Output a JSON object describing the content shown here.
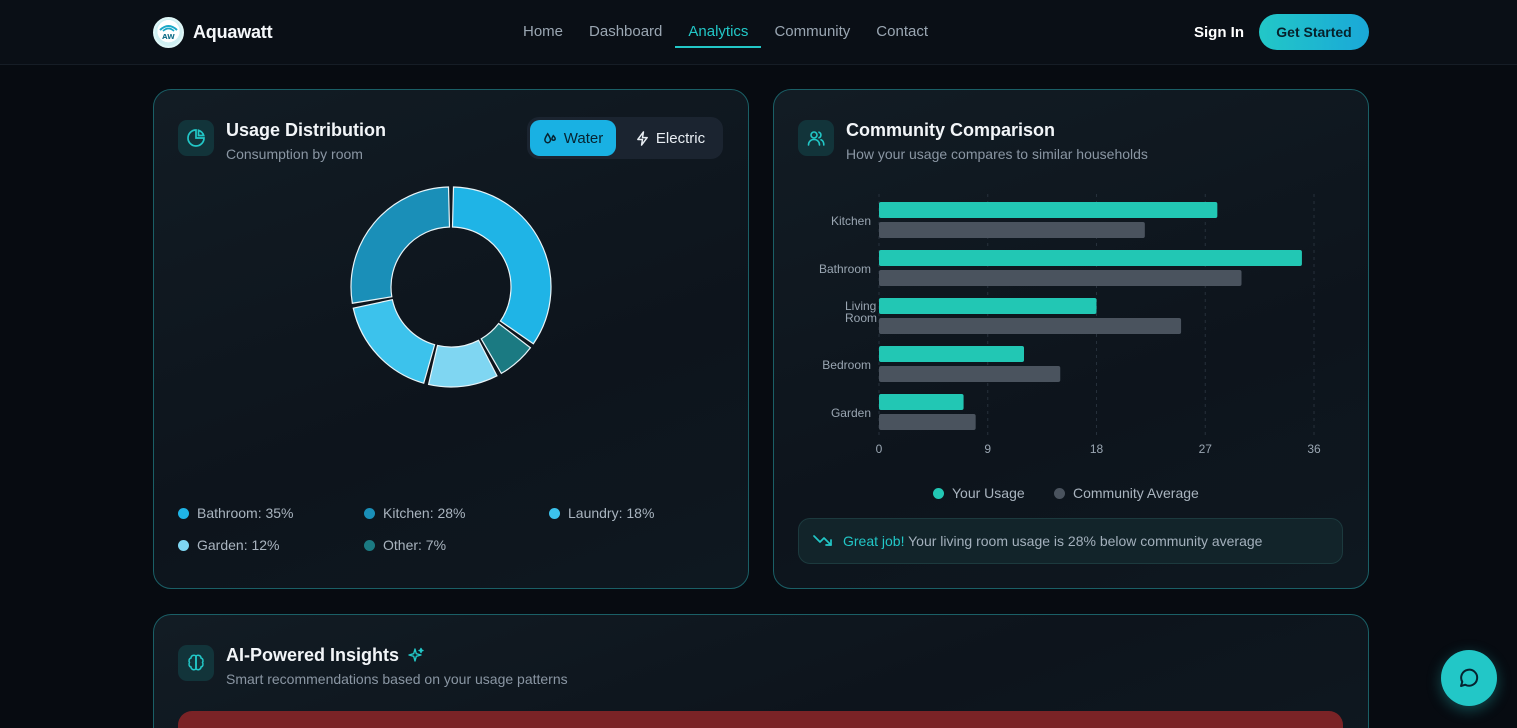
{
  "brand": {
    "name": "Aquawatt",
    "logo_text": "AW"
  },
  "nav": {
    "links": [
      "Home",
      "Dashboard",
      "Analytics",
      "Community",
      "Contact"
    ],
    "active": "Analytics",
    "signin": "Sign In",
    "cta": "Get Started"
  },
  "usage": {
    "title": "Usage Distribution",
    "subtitle": "Consumption by room",
    "toggle": {
      "water": "Water",
      "electric": "Electric",
      "selected": "Water"
    },
    "legend": [
      {
        "label": "Bathroom: 35%",
        "color": "#1fb4e6"
      },
      {
        "label": "Kitchen: 28%",
        "color": "#1a8fb8"
      },
      {
        "label": "Laundry: 18%",
        "color": "#3cc2ec"
      },
      {
        "label": "Garden: 12%",
        "color": "#7fd6f2"
      },
      {
        "label": "Other: 7%",
        "color": "#1b7a82"
      }
    ],
    "chart_data": {
      "type": "pie",
      "categories": [
        "Bathroom",
        "Kitchen",
        "Laundry",
        "Garden",
        "Other"
      ],
      "values": [
        35,
        28,
        18,
        12,
        7
      ],
      "colors": [
        "#1fb4e6",
        "#1a8fb8",
        "#3cc2ec",
        "#7fd6f2",
        "#1b7a82"
      ],
      "title": "",
      "legend": "bottom"
    }
  },
  "community": {
    "title": "Community Comparison",
    "subtitle": "How your usage compares to similar households",
    "chart_data": {
      "type": "bar",
      "orientation": "horizontal",
      "categories": [
        "Kitchen",
        "Bathroom",
        "Living Room",
        "Bedroom",
        "Garden"
      ],
      "series": [
        {
          "name": "Your Usage",
          "values": [
            28,
            35,
            18,
            12,
            7
          ],
          "color": "#22c7b4"
        },
        {
          "name": "Community Average",
          "values": [
            22,
            30,
            25,
            15,
            8
          ],
          "color": "#4a535e"
        }
      ],
      "xlim": [
        0,
        36
      ],
      "xticks": [
        0,
        9,
        18,
        27,
        36
      ],
      "grid": true,
      "legend": "bottom"
    },
    "note": {
      "highlight": "Great job!",
      "text": " Your living room usage is 28% below community average"
    }
  },
  "insights": {
    "title": "AI-Powered Insights",
    "subtitle": "Smart recommendations based on your usage patterns"
  }
}
